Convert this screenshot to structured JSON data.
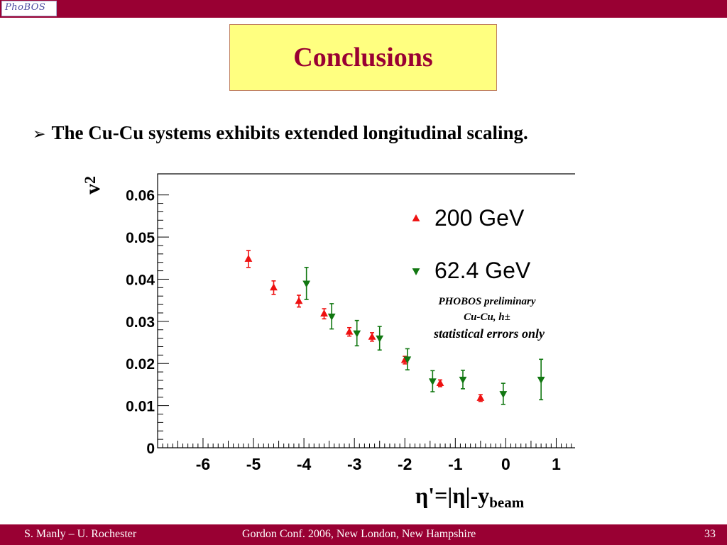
{
  "header": {
    "logo_text": "PhoBOS"
  },
  "slide": {
    "title": "Conclusions",
    "bullet_icon": "arrow-bullet-icon",
    "bullet": "The Cu-Cu systems exhibits extended longitudinal scaling."
  },
  "annotations": {
    "line1": "PHOBOS preliminary",
    "line2": "Cu-Cu, h±",
    "line3": "statistical errors only"
  },
  "colors": {
    "bar": "#990033",
    "title": "#990033",
    "title_bg": "#ffff80",
    "series1": "#ee1111",
    "series2": "#117711"
  },
  "chart_data": {
    "type": "scatter",
    "ylabel_main": "v",
    "ylabel_sub": "2",
    "xlabel_main": "η'=|η|-y",
    "xlabel_sub": "beam",
    "xlim": [
      -6.9,
      1.5
    ],
    "ylim": [
      0,
      0.065
    ],
    "xticks": [
      "-6",
      "-5",
      "-4",
      "-3",
      "-2",
      "-1",
      "0",
      "1"
    ],
    "yticks": [
      "0",
      "0.01",
      "0.02",
      "0.03",
      "0.04",
      "0.05",
      "0.06"
    ],
    "legend_position": "top-right",
    "series": [
      {
        "name": "200 GeV",
        "marker": "triangle-up",
        "x": [
          -5.1,
          -4.6,
          -4.1,
          -3.6,
          -3.1,
          -2.65,
          -2.0,
          -1.3,
          -0.5
        ],
        "y": [
          0.0448,
          0.038,
          0.0348,
          0.0318,
          0.0275,
          0.0263,
          0.0208,
          0.0153,
          0.0118
        ],
        "err": [
          0.002,
          0.0016,
          0.0014,
          0.0012,
          0.001,
          0.001,
          0.0009,
          0.0008,
          0.0008
        ]
      },
      {
        "name": "62.4 GeV",
        "marker": "triangle-down",
        "x": [
          -3.95,
          -3.45,
          -2.95,
          -2.5,
          -1.95,
          -1.45,
          -0.85,
          -0.05,
          0.7
        ],
        "y": [
          0.039,
          0.0312,
          0.0272,
          0.026,
          0.021,
          0.0158,
          0.0162,
          0.0128,
          0.0162
        ],
        "err": [
          0.0038,
          0.003,
          0.003,
          0.0028,
          0.0025,
          0.0025,
          0.0022,
          0.0025,
          0.0048
        ]
      }
    ]
  },
  "footer": {
    "left": "S. Manly – U. Rochester",
    "center": "Gordon Conf. 2006, New London, New Hampshire",
    "page": "33"
  }
}
